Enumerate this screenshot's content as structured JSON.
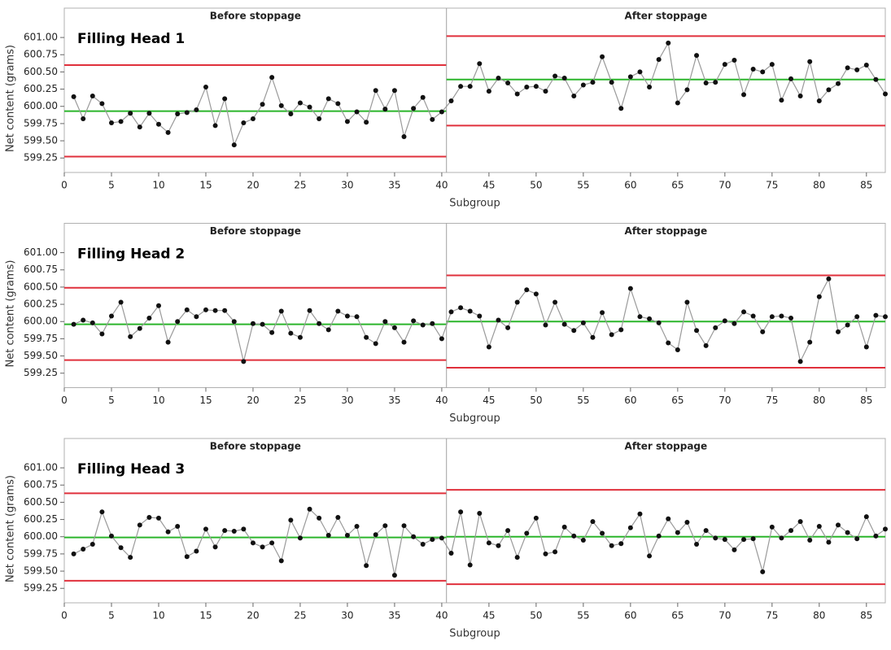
{
  "chart_data": [
    {
      "type": "line",
      "title": "Filling Head 1",
      "xlabel": "Subgroup",
      "ylabel": "Net content (grams)",
      "x": [
        1,
        2,
        3,
        4,
        5,
        6,
        7,
        8,
        9,
        10,
        11,
        12,
        13,
        14,
        15,
        16,
        17,
        18,
        19,
        20,
        21,
        22,
        23,
        24,
        25,
        26,
        27,
        28,
        29,
        30,
        31,
        32,
        33,
        34,
        35,
        36,
        37,
        38,
        39,
        40,
        41,
        42,
        43,
        44,
        45,
        46,
        47,
        48,
        49,
        50,
        51,
        52,
        53,
        54,
        55,
        56,
        57,
        58,
        59,
        60,
        61,
        62,
        63,
        64,
        65,
        66,
        67,
        68,
        69,
        70,
        71,
        72,
        73,
        74,
        75,
        76,
        77,
        78,
        79,
        80,
        81,
        82,
        83,
        84,
        85,
        86,
        87
      ],
      "values": [
        600.14,
        599.82,
        600.15,
        600.04,
        599.76,
        599.78,
        599.9,
        599.7,
        599.9,
        599.74,
        599.62,
        599.89,
        599.91,
        599.95,
        600.28,
        599.72,
        600.11,
        599.44,
        599.76,
        599.82,
        600.03,
        600.42,
        600.01,
        599.89,
        600.05,
        599.99,
        599.82,
        600.11,
        600.04,
        599.78,
        599.92,
        599.77,
        600.23,
        599.96,
        600.23,
        599.56,
        599.97,
        600.13,
        599.81,
        599.92,
        600.08,
        600.29,
        600.29,
        600.62,
        600.22,
        600.41,
        600.34,
        600.18,
        600.28,
        600.29,
        600.22,
        600.44,
        600.41,
        600.15,
        600.31,
        600.35,
        600.72,
        600.35,
        599.97,
        600.43,
        600.5,
        600.28,
        600.68,
        600.92,
        600.05,
        600.24,
        600.74,
        600.34,
        600.35,
        600.61,
        600.67,
        600.17,
        600.54,
        600.5,
        600.61,
        600.09,
        600.4,
        600.15,
        600.65,
        600.08,
        600.24,
        600.33,
        600.56,
        600.53,
        600.6,
        600.39,
        600.18
      ],
      "xlim": [
        0,
        87
      ],
      "xticks": [
        0,
        5,
        10,
        15,
        20,
        25,
        30,
        35,
        40,
        45,
        50,
        55,
        60,
        65,
        70,
        75,
        80,
        85
      ],
      "ylim": [
        599.04,
        601.19
      ],
      "yticks": [
        599.25,
        {
          "value": 599.5,
          "label": "599.50"
        },
        599.75,
        {
          "value": 600,
          "label": "600.00"
        },
        600.25,
        {
          "value": 600.5,
          "label": "600.50"
        },
        600.75,
        {
          "value": 601,
          "label": "601.00"
        }
      ],
      "phases": [
        {
          "label": "Before stoppage",
          "xlim": [
            0,
            40.5
          ],
          "ucl": 600.6,
          "center": 599.93,
          "lcl": 599.27
        },
        {
          "label": "After stoppage",
          "xlim": [
            40.5,
            87
          ],
          "ucl": 601.02,
          "center": 600.39,
          "lcl": 599.72
        }
      ],
      "line_color": "#9a9a9a",
      "marker_color": "#111111",
      "center_color": "#2bb52b",
      "limit_color": "#e0303c"
    },
    {
      "type": "line",
      "title": "Filling Head 2",
      "xlabel": "Subgroup",
      "ylabel": "Net content (grams)",
      "x": [
        1,
        2,
        3,
        4,
        5,
        6,
        7,
        8,
        9,
        10,
        11,
        12,
        13,
        14,
        15,
        16,
        17,
        18,
        19,
        20,
        21,
        22,
        23,
        24,
        25,
        26,
        27,
        28,
        29,
        30,
        31,
        32,
        33,
        34,
        35,
        36,
        37,
        38,
        39,
        40,
        41,
        42,
        43,
        44,
        45,
        46,
        47,
        48,
        49,
        50,
        51,
        52,
        53,
        54,
        55,
        56,
        57,
        58,
        59,
        60,
        61,
        62,
        63,
        64,
        65,
        66,
        67,
        68,
        69,
        70,
        71,
        72,
        73,
        74,
        75,
        76,
        77,
        78,
        79,
        80,
        81,
        82,
        83,
        84,
        85,
        86,
        87
      ],
      "values": [
        599.96,
        600.02,
        599.98,
        599.82,
        600.08,
        600.28,
        599.78,
        599.9,
        600.05,
        600.23,
        599.7,
        600.0,
        600.17,
        600.07,
        600.17,
        600.16,
        600.16,
        600.0,
        599.42,
        599.97,
        599.96,
        599.84,
        600.15,
        599.83,
        599.77,
        600.16,
        599.97,
        599.88,
        600.15,
        600.08,
        600.07,
        599.77,
        599.68,
        600.0,
        599.91,
        599.7,
        600.01,
        599.95,
        599.97,
        599.75,
        600.14,
        600.2,
        600.15,
        600.08,
        599.63,
        600.02,
        599.91,
        600.28,
        600.46,
        600.4,
        599.95,
        600.28,
        599.96,
        599.87,
        599.98,
        599.77,
        600.13,
        599.81,
        599.88,
        600.48,
        600.07,
        600.04,
        599.98,
        599.69,
        599.59,
        600.28,
        599.87,
        599.65,
        599.91,
        600.01,
        599.97,
        600.14,
        600.08,
        599.85,
        600.07,
        600.08,
        600.05,
        599.42,
        599.7,
        600.36,
        600.62,
        599.85,
        599.95,
        600.07,
        599.63,
        600.09,
        600.07
      ],
      "xlim": [
        0,
        87
      ],
      "xticks": [
        0,
        5,
        10,
        15,
        20,
        25,
        30,
        35,
        40,
        45,
        50,
        55,
        60,
        65,
        70,
        75,
        80,
        85
      ],
      "ylim": [
        599.04,
        601.19
      ],
      "yticks": [
        599.25,
        {
          "value": 599.5,
          "label": "599.50"
        },
        599.75,
        {
          "value": 600,
          "label": "600.00"
        },
        600.25,
        {
          "value": 600.5,
          "label": "600.50"
        },
        600.75,
        {
          "value": 601,
          "label": "601.00"
        }
      ],
      "phases": [
        {
          "label": "Before stoppage",
          "xlim": [
            0,
            40.5
          ],
          "ucl": 600.49,
          "center": 599.96,
          "lcl": 599.44
        },
        {
          "label": "After stoppage",
          "xlim": [
            40.5,
            87
          ],
          "ucl": 600.67,
          "center": 600.0,
          "lcl": 599.33
        }
      ],
      "line_color": "#9a9a9a",
      "marker_color": "#111111",
      "center_color": "#2bb52b",
      "limit_color": "#e0303c"
    },
    {
      "type": "line",
      "title": "Filling Head 3",
      "xlabel": "Subgroup",
      "ylabel": "Net content (grams)",
      "x": [
        1,
        2,
        3,
        4,
        5,
        6,
        7,
        8,
        9,
        10,
        11,
        12,
        13,
        14,
        15,
        16,
        17,
        18,
        19,
        20,
        21,
        22,
        23,
        24,
        25,
        26,
        27,
        28,
        29,
        30,
        31,
        32,
        33,
        34,
        35,
        36,
        37,
        38,
        39,
        40,
        41,
        42,
        43,
        44,
        45,
        46,
        47,
        48,
        49,
        50,
        51,
        52,
        53,
        54,
        55,
        56,
        57,
        58,
        59,
        60,
        61,
        62,
        63,
        64,
        65,
        66,
        67,
        68,
        69,
        70,
        71,
        72,
        73,
        74,
        75,
        76,
        77,
        78,
        79,
        80,
        81,
        82,
        83,
        84,
        85,
        86,
        87
      ],
      "values": [
        599.75,
        599.82,
        599.89,
        600.36,
        600.01,
        599.84,
        599.7,
        600.17,
        600.28,
        600.27,
        600.07,
        600.15,
        599.71,
        599.79,
        600.11,
        599.85,
        600.09,
        600.08,
        600.11,
        599.91,
        599.85,
        599.91,
        599.65,
        600.24,
        599.98,
        600.4,
        600.27,
        600.02,
        600.28,
        600.02,
        600.15,
        599.58,
        600.03,
        600.16,
        599.44,
        600.16,
        600.0,
        599.89,
        599.96,
        599.98,
        599.76,
        600.36,
        599.59,
        600.34,
        599.91,
        599.87,
        600.09,
        599.7,
        600.05,
        600.27,
        599.75,
        599.78,
        600.14,
        600.01,
        599.95,
        600.22,
        600.05,
        599.87,
        599.9,
        600.13,
        600.33,
        599.72,
        600.01,
        600.26,
        600.06,
        600.21,
        599.89,
        600.09,
        599.98,
        599.96,
        599.81,
        599.96,
        599.97,
        599.49,
        600.14,
        599.98,
        600.09,
        600.22,
        599.95,
        600.15,
        599.92,
        600.17,
        600.06,
        599.97,
        600.29,
        600.01,
        600.11
      ],
      "xlim": [
        0,
        87
      ],
      "xticks": [
        0,
        5,
        10,
        15,
        20,
        25,
        30,
        35,
        40,
        45,
        50,
        55,
        60,
        65,
        70,
        75,
        80,
        85
      ],
      "ylim": [
        599.04,
        601.19
      ],
      "yticks": [
        599.25,
        {
          "value": 599.5,
          "label": "599.50"
        },
        599.75,
        {
          "value": 600,
          "label": "600.00"
        },
        600.25,
        {
          "value": 600.5,
          "label": "600.50"
        },
        600.75,
        {
          "value": 601,
          "label": "601.00"
        }
      ],
      "phases": [
        {
          "label": "Before stoppage",
          "xlim": [
            0,
            40.5
          ],
          "ucl": 600.63,
          "center": 599.99,
          "lcl": 599.36
        },
        {
          "label": "After stoppage",
          "xlim": [
            40.5,
            87
          ],
          "ucl": 600.68,
          "center": 600.0,
          "lcl": 599.31
        }
      ],
      "line_color": "#9a9a9a",
      "marker_color": "#111111",
      "center_color": "#2bb52b",
      "limit_color": "#e0303c"
    }
  ]
}
